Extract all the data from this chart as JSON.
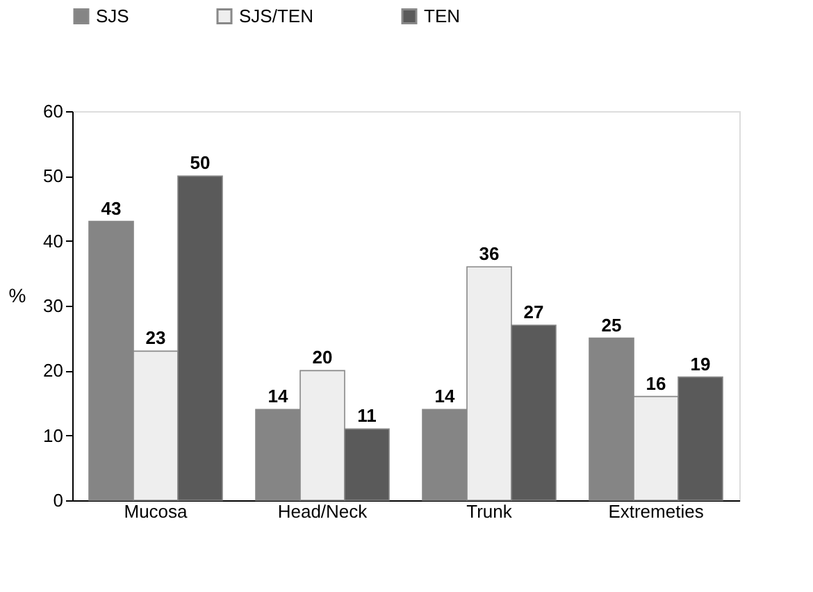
{
  "chart_data": {
    "type": "bar",
    "categories": [
      "Mucosa",
      "Head/Neck",
      "Trunk",
      "Extremeties"
    ],
    "ylabel": "%",
    "series": [
      {
        "name": "SJS",
        "color": "#858585",
        "values": [
          43,
          14,
          14,
          25
        ]
      },
      {
        "name": "SJS/TEN",
        "color": "#eeeeee",
        "values": [
          23,
          20,
          36,
          16
        ]
      },
      {
        "name": "TEN",
        "color": "#5a5a5a",
        "values": [
          50,
          11,
          27,
          19
        ]
      }
    ],
    "ylim": [
      0,
      60
    ],
    "yticks": [
      0,
      10,
      20,
      30,
      40,
      50,
      60
    ],
    "grid": false,
    "legend": "top",
    "data_labels": true
  }
}
